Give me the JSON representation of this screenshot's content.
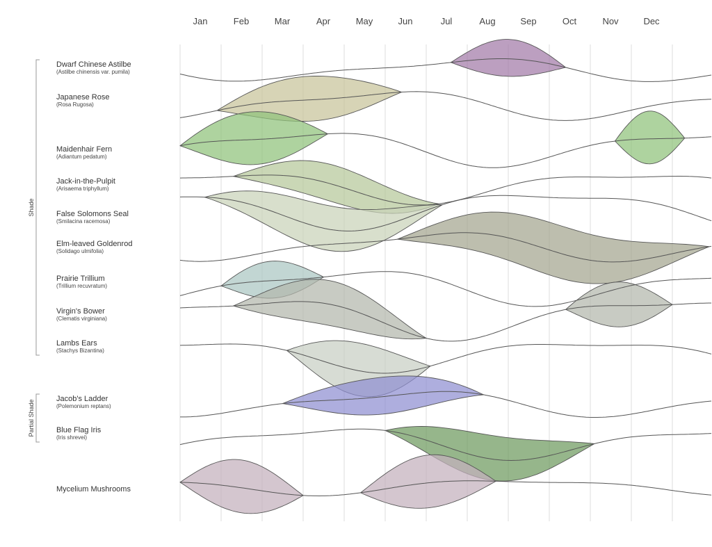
{
  "chart_data": {
    "type": "area",
    "title": "",
    "months": [
      "Jan",
      "Feb",
      "Mar",
      "Apr",
      "May",
      "Jun",
      "Jul",
      "Aug",
      "Sep",
      "Oct",
      "Nov",
      "Dec"
    ],
    "groups": [
      {
        "label": "Shade",
        "from": 0,
        "to": 8
      },
      {
        "label": "Partial Shade",
        "from": 9,
        "to": 10
      }
    ],
    "plants": [
      {
        "name": "Dwarf Chinese Astilbe",
        "scientific": "(Astilbe chinensis var. pumila)",
        "color": "#a27aa8",
        "periods": [
          [
            6.6,
            9.4
          ]
        ]
      },
      {
        "name": "Japanese Rose",
        "scientific": "(Rosa Rugosa)",
        "color": "#c8c39a",
        "periods": [
          [
            0.9,
            5.4
          ]
        ]
      },
      {
        "name": "Maidenhair Fern",
        "scientific": "(Adiantum pedatum)",
        "color": "#8fc27a",
        "periods": [
          [
            0.0,
            3.6
          ],
          [
            10.6,
            12.3
          ]
        ]
      },
      {
        "name": "Jack-in-the-Pulpit",
        "scientific": "(Arisaema triphyllum)",
        "color": "#b6c79a",
        "periods": [
          [
            1.3,
            6.3
          ]
        ]
      },
      {
        "name": "False Solomons Seal",
        "scientific": "(Smilacina racemosa)",
        "color": "#c9d3b9",
        "periods": [
          [
            0.6,
            6.4
          ]
        ]
      },
      {
        "name": "Elm-leaved Goldenrod",
        "scientific": "(Solidago ulmifolia)",
        "color": "#a3a58f",
        "periods": [
          [
            5.3,
            12.9
          ]
        ]
      },
      {
        "name": "Prairie Trillium",
        "scientific": "(Trillium recuvratum)",
        "color": "#aac6c2",
        "periods": [
          [
            1.0,
            3.5
          ]
        ]
      },
      {
        "name": "Virgin's Bower",
        "scientific": "(Clematis virginiana)",
        "color": "#b3b7ac",
        "periods": [
          [
            1.3,
            6.0
          ],
          [
            9.4,
            12.0
          ]
        ]
      },
      {
        "name": "Lambs Ears",
        "scientific": "(Stachys Bizantina)",
        "color": "#c7cec4",
        "periods": [
          [
            2.6,
            6.1
          ]
        ]
      },
      {
        "name": "Jacob's Ladder",
        "scientific": "(Polemonium reptans)",
        "color": "#8f8fd1",
        "periods": [
          [
            2.5,
            7.4
          ]
        ]
      },
      {
        "name": "Blue Flag Iris",
        "scientific": "(Iris shrevei)",
        "color": "#6e9a5e",
        "periods": [
          [
            5.0,
            10.1
          ]
        ]
      },
      {
        "name": "Mycelium Mushrooms",
        "scientific": "",
        "color": "#c3b0bd",
        "periods": [
          [
            0.0,
            3.0
          ],
          [
            4.4,
            7.7
          ]
        ]
      }
    ]
  }
}
